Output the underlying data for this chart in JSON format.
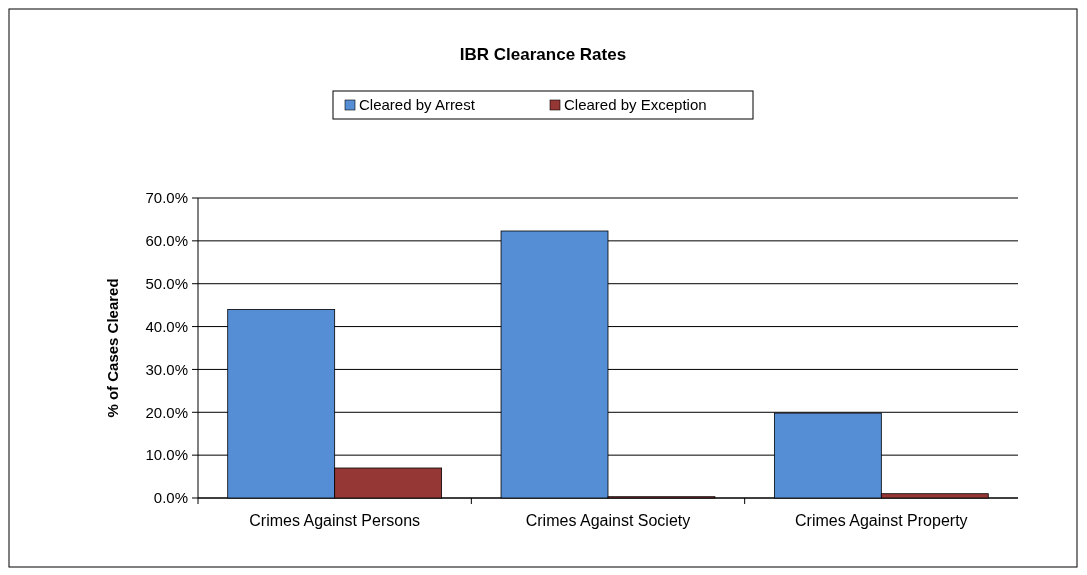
{
  "chart_data": {
    "type": "bar",
    "title": "IBR Clearance Rates",
    "ylabel": "% of Cases Cleared",
    "categories": [
      "Crimes Against Persons",
      "Crimes Against Society",
      "Crimes Against Property"
    ],
    "series": [
      {
        "name": "Cleared by Arrest",
        "color": "#558ed5",
        "values": [
          44,
          62.3,
          19.8
        ]
      },
      {
        "name": "Cleared by Exception",
        "color": "#953735",
        "values": [
          7,
          0.3,
          1
        ]
      }
    ],
    "ylim": [
      0,
      70
    ],
    "yticks": [
      {
        "value": 0,
        "label": "0.0%"
      },
      {
        "value": 10,
        "label": "10.0%"
      },
      {
        "value": 20,
        "label": "20.0%"
      },
      {
        "value": 30,
        "label": "30.0%"
      },
      {
        "value": 40,
        "label": "40.0%"
      },
      {
        "value": 50,
        "label": "50.0%"
      },
      {
        "value": 60,
        "label": "60.0%"
      },
      {
        "value": 70,
        "label": "70.0%"
      }
    ],
    "grid": "y",
    "legend": "top"
  }
}
